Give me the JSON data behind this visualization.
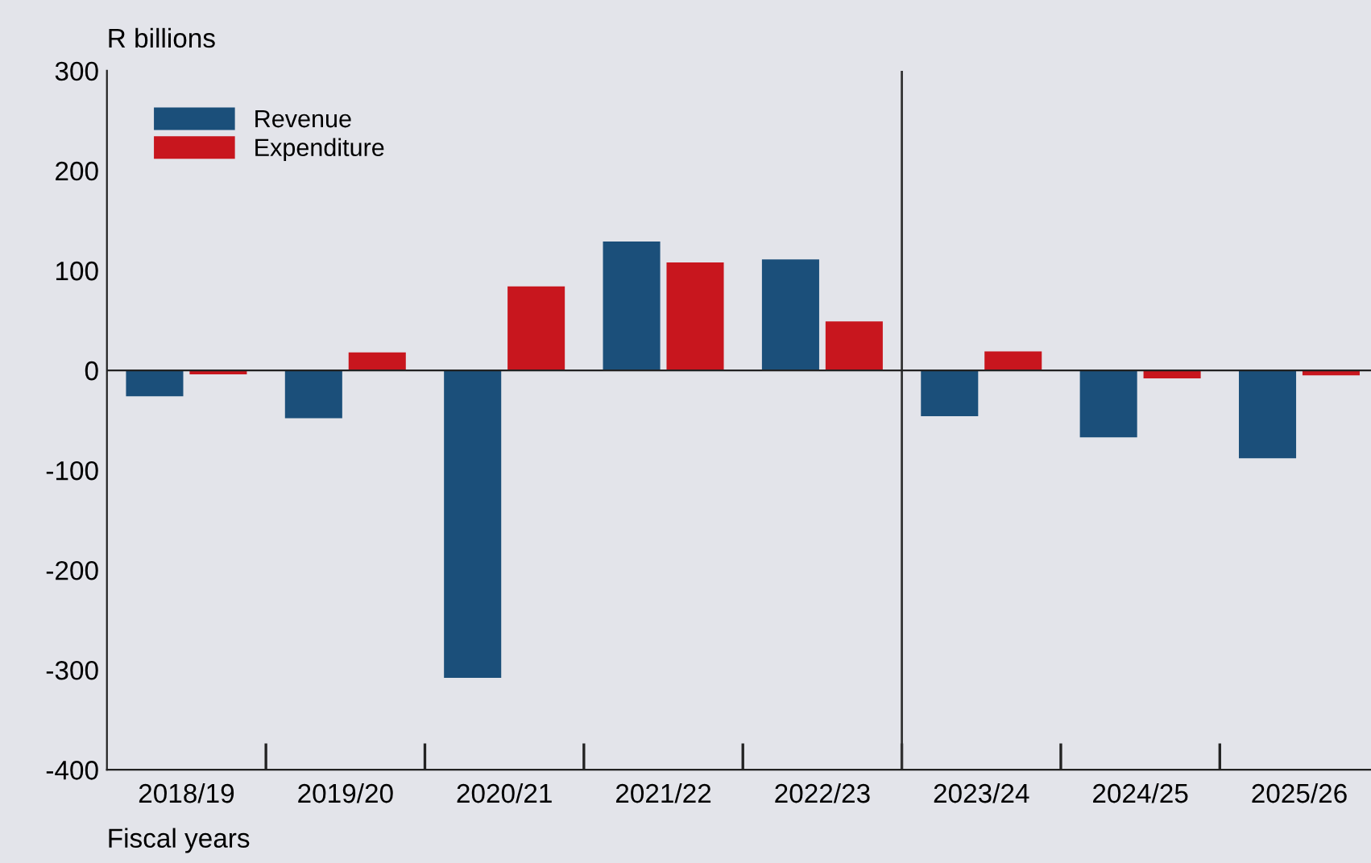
{
  "chart_data": {
    "type": "bar",
    "categories": [
      "2018/19",
      "2019/20",
      "2020/21",
      "2021/22",
      "2022/23",
      "2023/24",
      "2024/25",
      "2025/26"
    ],
    "series": [
      {
        "name": "Revenue",
        "color": "#1b4f7a",
        "values": [
          -26,
          -48,
          -308,
          129,
          111,
          -46,
          -67,
          -88
        ]
      },
      {
        "name": "Expenditure",
        "color": "#c8161e",
        "values": [
          -4,
          18,
          84,
          108,
          49,
          19,
          -8,
          -5
        ]
      }
    ],
    "ylim": [
      -400,
      300
    ],
    "yticks": [
      -400,
      -300,
      -200,
      -100,
      0,
      100,
      200,
      300
    ],
    "ylabel": "R billions",
    "xlabel": "Fiscal years",
    "ref_lines": [
      {
        "axis": "x",
        "value": "2023/24",
        "label": null,
        "color": "#333333"
      }
    ],
    "legend": "top left",
    "grid": false
  }
}
